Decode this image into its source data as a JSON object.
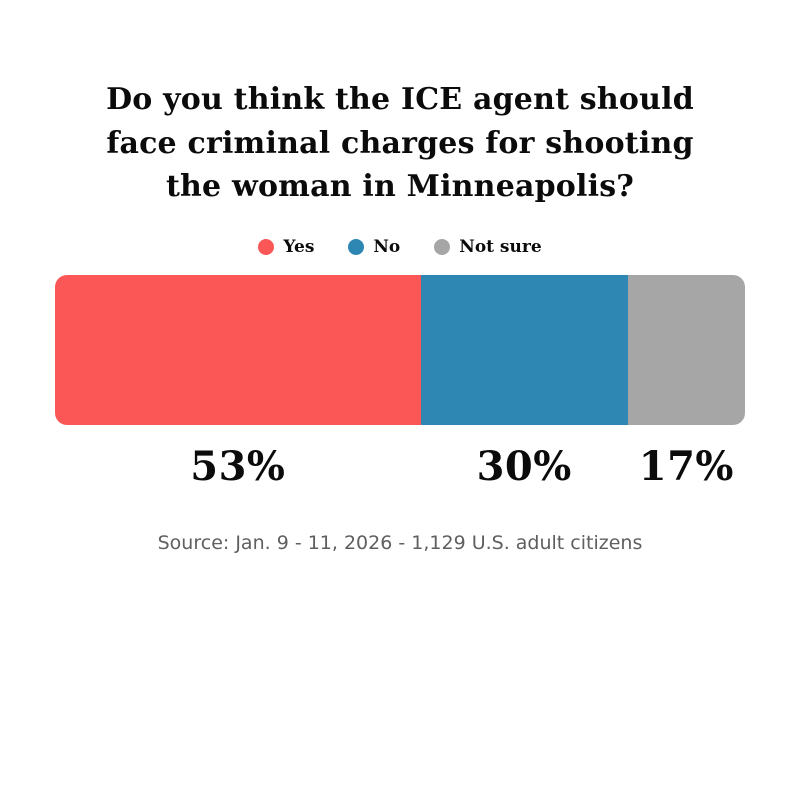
{
  "title": "Do you think the ICE agent should face criminal charges for shooting the woman in Minneapolis?",
  "source": "Source: Jan. 9 - 11, 2026 - 1,129 U.S. adult citizens",
  "chart_data": {
    "type": "bar",
    "subtype": "horizontal-stacked-100-percent",
    "title": "Do you think the ICE agent should face criminal charges for shooting the woman in Minneapolis?",
    "legend_position": "top",
    "grid": false,
    "xlim": [
      0,
      100
    ],
    "series": [
      {
        "name": "Yes",
        "value": 53,
        "label": "53%",
        "color": "#fb5757"
      },
      {
        "name": "No",
        "value": 30,
        "label": "30%",
        "color": "#2e86b2"
      },
      {
        "name": "Not sure",
        "value": 17,
        "label": "17%",
        "color": "#a7a6a6"
      }
    ]
  }
}
